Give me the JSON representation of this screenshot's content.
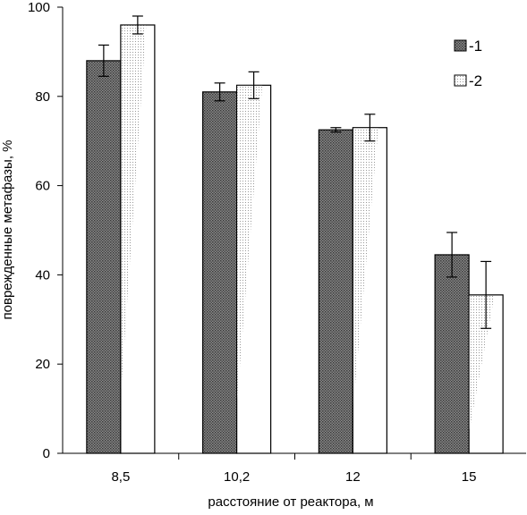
{
  "chart_data": {
    "type": "bar",
    "categories": [
      "8,5",
      "10,2",
      "12",
      "15"
    ],
    "series": [
      {
        "name": "-1",
        "values": [
          88,
          81,
          72.5,
          44.5
        ],
        "errors": [
          3.5,
          2,
          0.5,
          5
        ],
        "color": "#777777"
      },
      {
        "name": "-2",
        "values": [
          96,
          82.5,
          73,
          35.5
        ],
        "errors": [
          2,
          3,
          3,
          7.5
        ],
        "color": "#ffffff"
      }
    ],
    "xlabel": "расстояние от реактора, м",
    "ylabel": "поврежденные метафазы, %",
    "ylim": [
      0,
      100
    ],
    "yticks": [
      "0",
      "20",
      "40",
      "60",
      "80",
      "100"
    ],
    "ytick_values": [
      0,
      20,
      40,
      60,
      80,
      100
    ],
    "legend_position": "top-right",
    "grid": false
  }
}
